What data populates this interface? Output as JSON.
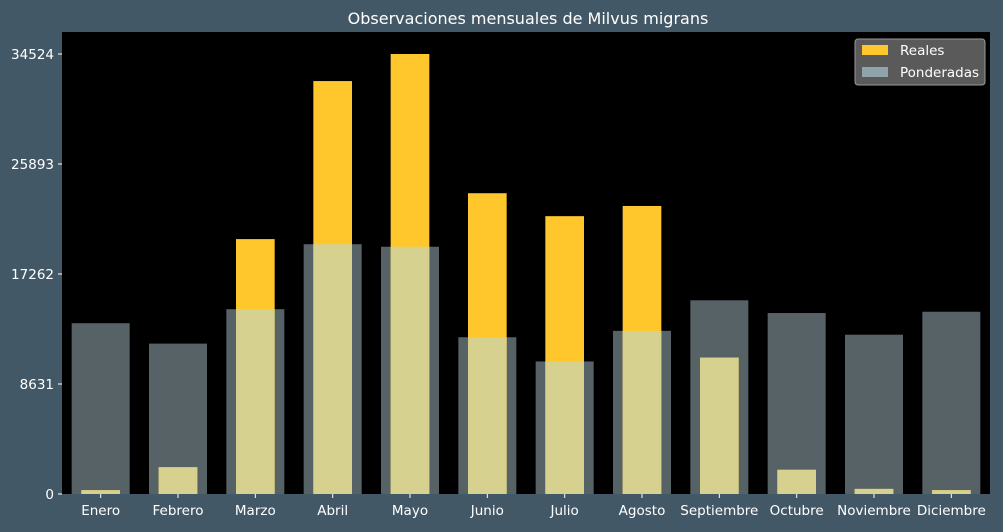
{
  "chart_data": {
    "type": "bar",
    "title": "Observaciones mensuales de Milvus migrans",
    "xlabel": "",
    "ylabel": "",
    "categories": [
      "Enero",
      "Febrero",
      "Marzo",
      "Abril",
      "Mayo",
      "Junio",
      "Julio",
      "Agosto",
      "Septiembre",
      "Octubre",
      "Noviembre",
      "Diciembre"
    ],
    "yticks": [
      0,
      8631,
      17262,
      25893,
      34524
    ],
    "ylim": [
      0,
      36250
    ],
    "grid": false,
    "legend_position": "top-right",
    "series": [
      {
        "name": "Reales",
        "color": "#ffc72c",
        "values": [
          300,
          2100,
          20000,
          32400,
          34524,
          23600,
          21800,
          22600,
          10700,
          1900,
          400,
          300
        ]
      },
      {
        "name": "Ponderadas",
        "color": "#8fa3aa",
        "values": [
          13400,
          11800,
          14500,
          19600,
          19400,
          12300,
          10400,
          12800,
          15200,
          14200,
          12500,
          14300
        ]
      }
    ],
    "colors": {
      "figure_background": "#435866",
      "plot_background": "#000000",
      "text": "#ffffff",
      "overlap": "#d6d18e",
      "legend_background": "#5a5a5a"
    }
  }
}
